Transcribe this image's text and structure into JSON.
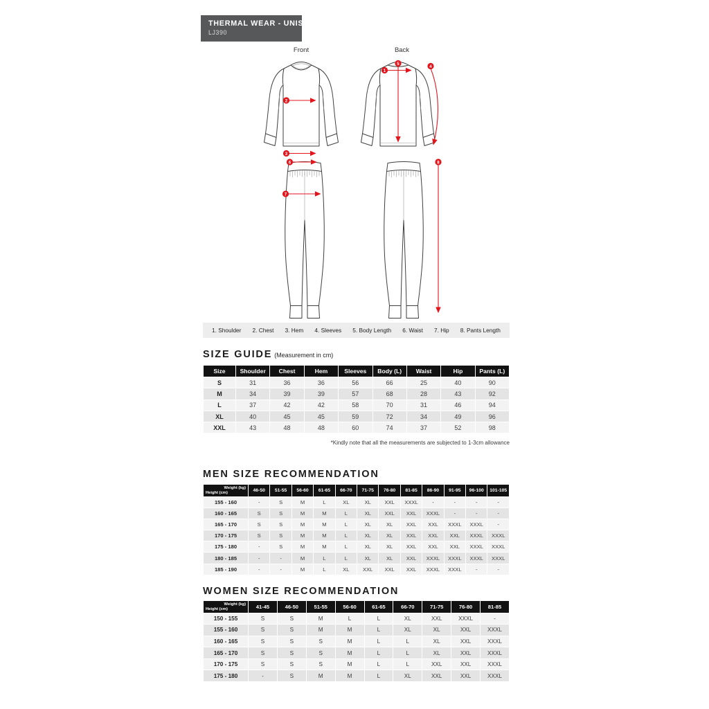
{
  "badge": {
    "title": "THERMAL WEAR - UNISEX",
    "code": "LJ390"
  },
  "diagram": {
    "front_label": "Front",
    "back_label": "Back",
    "legend": [
      {
        "num": "1",
        "label": "Shoulder"
      },
      {
        "num": "2",
        "label": "Chest"
      },
      {
        "num": "3",
        "label": "Hem"
      },
      {
        "num": "4",
        "label": "Sleeves"
      },
      {
        "num": "5",
        "label": "Body Length"
      },
      {
        "num": "6",
        "label": "Waist"
      },
      {
        "num": "7",
        "label": "Hip"
      },
      {
        "num": "8",
        "label": "Pants Length"
      }
    ]
  },
  "size_guide": {
    "title": "SIZE GUIDE",
    "subtitle": "(Measurement in cm)",
    "columns": [
      "Size",
      "Shoulder",
      "Chest",
      "Hem",
      "Sleeves",
      "Body (L)",
      "Waist",
      "Hip",
      "Pants (L)"
    ],
    "rows": [
      [
        "S",
        "31",
        "36",
        "36",
        "56",
        "66",
        "25",
        "40",
        "90"
      ],
      [
        "M",
        "34",
        "39",
        "39",
        "57",
        "68",
        "28",
        "43",
        "92"
      ],
      [
        "L",
        "37",
        "42",
        "42",
        "58",
        "70",
        "31",
        "46",
        "94"
      ],
      [
        "XL",
        "40",
        "45",
        "45",
        "59",
        "72",
        "34",
        "49",
        "96"
      ],
      [
        "XXL",
        "43",
        "48",
        "48",
        "60",
        "74",
        "37",
        "52",
        "98"
      ]
    ],
    "footnote": "*Kindly note that all the measurements are subjected to 1-3cm allowance"
  },
  "men": {
    "title": "MEN SIZE RECOMMENDATION",
    "corner_top": "Weight (kg)",
    "corner_bottom": "Height (cm)",
    "weights": [
      "46-50",
      "51-55",
      "56-60",
      "61-65",
      "66-70",
      "71-75",
      "76-80",
      "81-85",
      "86-90",
      "91-95",
      "96-100",
      "101-105"
    ],
    "rows": [
      {
        "height": "155 - 160",
        "sizes": [
          "-",
          "S",
          "M",
          "L",
          "XL",
          "XL",
          "XXL",
          "XXXL",
          "-",
          "-",
          "-",
          "-"
        ]
      },
      {
        "height": "160 - 165",
        "sizes": [
          "S",
          "S",
          "M",
          "M",
          "L",
          "XL",
          "XXL",
          "XXL",
          "XXXL",
          "-",
          "-",
          "-"
        ]
      },
      {
        "height": "165 - 170",
        "sizes": [
          "S",
          "S",
          "M",
          "M",
          "L",
          "XL",
          "XL",
          "XXL",
          "XXL",
          "XXXL",
          "XXXL",
          "-"
        ]
      },
      {
        "height": "170 - 175",
        "sizes": [
          "S",
          "S",
          "M",
          "M",
          "L",
          "XL",
          "XL",
          "XXL",
          "XXL",
          "XXL",
          "XXXL",
          "XXXL"
        ]
      },
      {
        "height": "175 - 180",
        "sizes": [
          "-",
          "S",
          "M",
          "M",
          "L",
          "XL",
          "XL",
          "XXL",
          "XXL",
          "XXL",
          "XXXL",
          "XXXL"
        ]
      },
      {
        "height": "180 - 185",
        "sizes": [
          "-",
          "-",
          "M",
          "L",
          "L",
          "XL",
          "XL",
          "XXL",
          "XXXL",
          "XXXL",
          "XXXL",
          "XXXL"
        ]
      },
      {
        "height": "185 - 190",
        "sizes": [
          "-",
          "-",
          "M",
          "L",
          "XL",
          "XXL",
          "XXL",
          "XXL",
          "XXXL",
          "XXXL",
          "-",
          "-"
        ]
      }
    ]
  },
  "women": {
    "title": "WOMEN SIZE RECOMMENDATION",
    "corner_top": "Weight (kg)",
    "corner_bottom": "Height (cm)",
    "weights": [
      "41-45",
      "46-50",
      "51-55",
      "56-60",
      "61-65",
      "66-70",
      "71-75",
      "76-80",
      "81-85"
    ],
    "rows": [
      {
        "height": "150 - 155",
        "sizes": [
          "S",
          "S",
          "M",
          "L",
          "L",
          "XL",
          "XXL",
          "XXXL",
          "-"
        ]
      },
      {
        "height": "155 - 160",
        "sizes": [
          "S",
          "S",
          "M",
          "M",
          "L",
          "XL",
          "XL",
          "XXL",
          "XXXL"
        ]
      },
      {
        "height": "160 - 165",
        "sizes": [
          "S",
          "S",
          "S",
          "M",
          "L",
          "L",
          "XL",
          "XXL",
          "XXXL"
        ]
      },
      {
        "height": "165 - 170",
        "sizes": [
          "S",
          "S",
          "S",
          "M",
          "L",
          "L",
          "XL",
          "XXL",
          "XXXL"
        ]
      },
      {
        "height": "170 - 175",
        "sizes": [
          "S",
          "S",
          "S",
          "M",
          "L",
          "L",
          "XXL",
          "XXL",
          "XXXL"
        ]
      },
      {
        "height": "175 - 180",
        "sizes": [
          "-",
          "S",
          "M",
          "M",
          "L",
          "XL",
          "XXL",
          "XXL",
          "XXXL"
        ]
      }
    ]
  },
  "colors": {
    "accent_red": "#e2151d",
    "table_header_bg": "#121212",
    "row_light": "#f3f3f3",
    "row_dark": "#e4e4e4",
    "legend_bg": "#ededed",
    "badge_bg": "#57585a"
  }
}
